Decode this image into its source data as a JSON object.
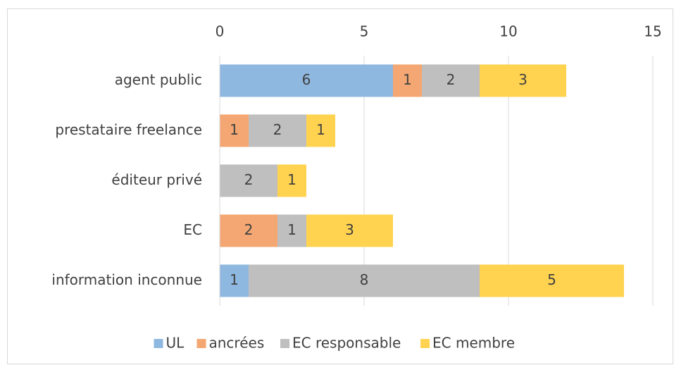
{
  "chart_data": {
    "type": "stacked_barh",
    "categories": [
      "agent public",
      "prestataire freelance",
      "éditeur privé",
      "EC",
      "information inconnue"
    ],
    "series": [
      {
        "name": "UL",
        "color": "#8fb8e0",
        "values": [
          6,
          0,
          0,
          0,
          1
        ]
      },
      {
        "name": "ancrées",
        "color": "#f4a772",
        "values": [
          1,
          1,
          0,
          2,
          0
        ]
      },
      {
        "name": "EC responsable",
        "color": "#bfbfbf",
        "values": [
          2,
          2,
          2,
          1,
          8
        ]
      },
      {
        "name": "EC membre",
        "color": "#ffd350",
        "values": [
          3,
          1,
          1,
          3,
          5
        ]
      }
    ],
    "xlim": [
      0,
      15
    ],
    "xticks": [
      0,
      5,
      10,
      15
    ],
    "grid": true,
    "legend": "bottom"
  }
}
